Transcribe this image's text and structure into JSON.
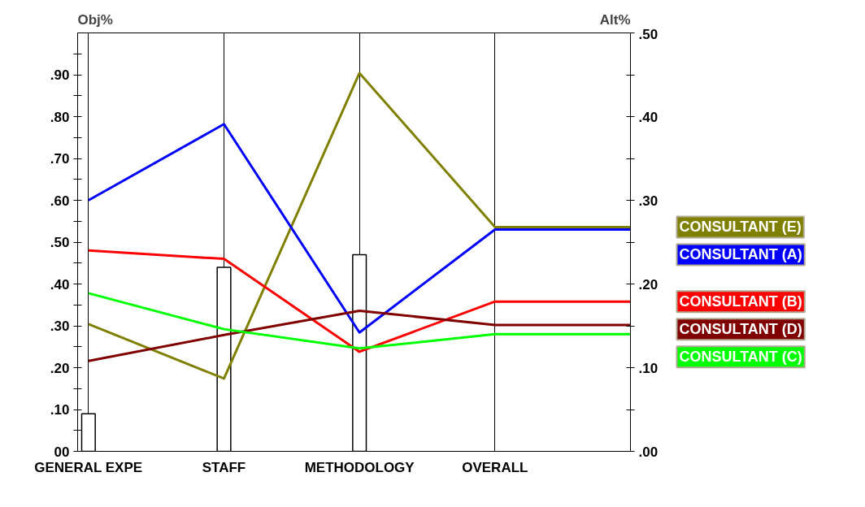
{
  "chart_data": {
    "type": "line",
    "categories": [
      "GENERAL EXPE",
      "STAFF",
      "METHODOLOGY",
      "OVERALL",
      null
    ],
    "ylabel": "Obj%",
    "y2label": "Alt%",
    "ylim": [
      0,
      1
    ],
    "yticks": [
      {
        "value": 0,
        "label": "00"
      },
      {
        "value": 0.05,
        "label": null
      },
      {
        "value": 0.1,
        "label": ".10"
      },
      {
        "value": 0.15,
        "label": null
      },
      {
        "value": 0.2,
        "label": ".20"
      },
      {
        "value": 0.25,
        "label": null
      },
      {
        "value": 0.3,
        "label": ".30"
      },
      {
        "value": 0.35,
        "label": null
      },
      {
        "value": 0.4,
        "label": ".40"
      },
      {
        "value": 0.45,
        "label": null
      },
      {
        "value": 0.5,
        "label": ".50"
      },
      {
        "value": 0.55,
        "label": null
      },
      {
        "value": 0.6,
        "label": ".60"
      },
      {
        "value": 0.65,
        "label": null
      },
      {
        "value": 0.7,
        "label": ".70"
      },
      {
        "value": 0.75,
        "label": null
      },
      {
        "value": 0.8,
        "label": ".80"
      },
      {
        "value": 0.85,
        "label": null
      },
      {
        "value": 0.9,
        "label": ".90"
      },
      {
        "value": 0.95,
        "label": null
      }
    ],
    "y2lim": [
      0,
      0.5
    ],
    "y2ticks": [
      {
        "value": 0,
        "label": ".00"
      },
      {
        "value": 0.05,
        "label": null
      },
      {
        "value": 0.1,
        "label": ".10"
      },
      {
        "value": 0.15,
        "label": null
      },
      {
        "value": 0.2,
        "label": ".20"
      },
      {
        "value": 0.25,
        "label": null
      },
      {
        "value": 0.3,
        "label": ".30"
      },
      {
        "value": 0.35,
        "label": null
      },
      {
        "value": 0.4,
        "label": ".40"
      },
      {
        "value": 0.45,
        "label": null
      },
      {
        "value": 0.5,
        "label": ".50"
      }
    ],
    "grid": "x",
    "legend": "right",
    "series": [
      {
        "type": "bar",
        "axis": "y",
        "color": "#ffffff",
        "values": [
          0.09,
          0.44,
          0.47,
          null,
          null
        ]
      },
      {
        "name": "CONSULTANT (E)",
        "axis": "y2",
        "color": "#808000",
        "values": [
          0.152,
          0.087,
          0.452,
          0.268,
          0.268
        ]
      },
      {
        "name": "CONSULTANT (A)",
        "axis": "y2",
        "color": "#0000ff",
        "values": [
          0.3,
          0.391,
          0.142,
          0.265,
          0.265
        ]
      },
      {
        "name": "CONSULTANT (B)",
        "axis": "y2",
        "color": "#ff0000",
        "values": [
          0.24,
          0.23,
          0.119,
          0.179,
          0.179
        ]
      },
      {
        "name": "CONSULTANT (D)",
        "axis": "y2",
        "color": "#800000",
        "values": [
          0.108,
          0.139,
          0.168,
          0.151,
          0.151
        ]
      },
      {
        "name": "CONSULTANT (C)",
        "axis": "y2",
        "color": "#00ff00",
        "values": [
          0.189,
          0.146,
          0.123,
          0.14,
          0.14
        ]
      }
    ]
  }
}
